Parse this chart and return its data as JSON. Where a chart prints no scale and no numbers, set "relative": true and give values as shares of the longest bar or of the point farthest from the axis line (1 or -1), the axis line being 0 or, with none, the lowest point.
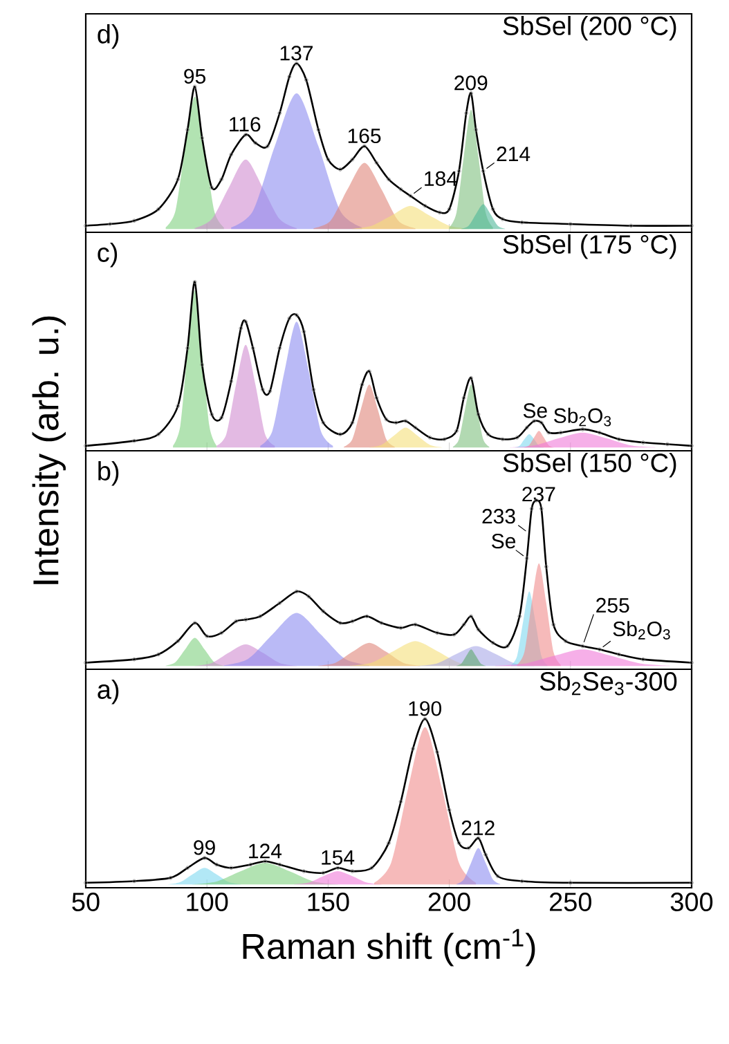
{
  "chart_data": [
    {
      "type": "area",
      "title": "SbSel (200 °C)",
      "relative": true,
      "xlim": [
        50,
        300
      ],
      "xticks": [
        50,
        100,
        150,
        200,
        250,
        300
      ],
      "tick_labels": false,
      "annotations": [
        "d)",
        {
          "text": "95",
          "x": 95,
          "y": 0.86
        },
        {
          "text": "116",
          "x": 116,
          "y": 0.57
        },
        {
          "text": "137",
          "x": 137,
          "y": 1
        },
        {
          "text": "165",
          "x": 165,
          "y": 0.5
        },
        {
          "text": "184",
          "x": 184,
          "y": 0.2
        },
        {
          "text": "209",
          "x": 209,
          "y": 0.82
        },
        {
          "text": "214",
          "x": 214,
          "y": 0.35
        }
      ],
      "series": [
        {
          "color": "#7fd17f",
          "x": [
            83,
            87,
            91,
            95,
            99,
            103,
            107
          ],
          "values": [
            0.01,
            0.11,
            0.49,
            0.8,
            0.49,
            0.11,
            0.01
          ]
        },
        {
          "color": "#d08cd0",
          "x": [
            95,
            102,
            109,
            116,
            123,
            130,
            137
          ],
          "values": [
            0.005,
            0.06,
            0.25,
            0.42,
            0.25,
            0.06,
            0.005
          ]
        },
        {
          "color": "#8c8cf0",
          "x": [
            110,
            119,
            128,
            137,
            146,
            155,
            164
          ],
          "values": [
            0.01,
            0.11,
            0.5,
            0.82,
            0.5,
            0.11,
            0.01
          ]
        },
        {
          "color": "#e0867a",
          "x": [
            144,
            151,
            158,
            165,
            172,
            179,
            186
          ],
          "values": [
            0.005,
            0.05,
            0.24,
            0.4,
            0.24,
            0.05,
            0.005
          ]
        },
        {
          "color": "#f5e07a",
          "x": [
            160,
            168,
            176,
            184,
            192,
            200,
            208
          ],
          "values": [
            0.002,
            0.02,
            0.08,
            0.14,
            0.08,
            0.02,
            0.002
          ]
        },
        {
          "color": "#7fbf7f",
          "x": [
            200,
            203,
            206,
            209,
            212,
            215,
            218
          ],
          "values": [
            0.01,
            0.1,
            0.44,
            0.72,
            0.44,
            0.1,
            0.01
          ]
        },
        {
          "color": "#4fb89a",
          "x": [
            205,
            208,
            211,
            214,
            217,
            220,
            223
          ],
          "values": [
            0.002,
            0.02,
            0.09,
            0.15,
            0.09,
            0.02,
            0.002
          ]
        },
        {
          "type": "scatter",
          "color": "#808080",
          "x": [
            50,
            60,
            70,
            80,
            88,
            92,
            95,
            98,
            102,
            106,
            110,
            116,
            120,
            125,
            130,
            134,
            137,
            141,
            146,
            150,
            155,
            160,
            165,
            170,
            175,
            180,
            184,
            190,
            196,
            200,
            204,
            207,
            209,
            211,
            214,
            218,
            222,
            230,
            250,
            275,
            300
          ],
          "values": [
            0.02,
            0.03,
            0.05,
            0.12,
            0.3,
            0.6,
            0.86,
            0.55,
            0.25,
            0.3,
            0.45,
            0.57,
            0.52,
            0.5,
            0.7,
            0.92,
            1,
            0.9,
            0.6,
            0.42,
            0.36,
            0.42,
            0.5,
            0.4,
            0.3,
            0.24,
            0.2,
            0.14,
            0.1,
            0.12,
            0.35,
            0.7,
            0.82,
            0.6,
            0.35,
            0.12,
            0.06,
            0.04,
            0.03,
            0.02,
            0.02
          ]
        },
        {
          "type": "line",
          "color": "#000000",
          "x": [
            50,
            60,
            70,
            80,
            88,
            92,
            95,
            98,
            102,
            106,
            110,
            116,
            120,
            125,
            130,
            134,
            137,
            141,
            146,
            150,
            155,
            160,
            165,
            170,
            175,
            180,
            184,
            190,
            196,
            200,
            204,
            207,
            209,
            211,
            214,
            218,
            222,
            230,
            250,
            275,
            300
          ],
          "values": [
            0.02,
            0.03,
            0.05,
            0.12,
            0.3,
            0.6,
            0.86,
            0.55,
            0.25,
            0.3,
            0.45,
            0.57,
            0.52,
            0.5,
            0.7,
            0.92,
            1,
            0.9,
            0.6,
            0.42,
            0.36,
            0.42,
            0.5,
            0.4,
            0.3,
            0.24,
            0.2,
            0.14,
            0.1,
            0.12,
            0.35,
            0.7,
            0.82,
            0.6,
            0.35,
            0.12,
            0.06,
            0.04,
            0.03,
            0.02,
            0.02
          ]
        }
      ]
    },
    {
      "type": "area",
      "title": "SbSel (175 °C)",
      "ylabel": "Intensity (arb. u.)",
      "relative": true,
      "xlim": [
        50,
        300
      ],
      "xticks": [
        50,
        100,
        150,
        200,
        250,
        300
      ],
      "tick_labels": false,
      "annotations": [
        "c)",
        {
          "text": "Se",
          "x": 235,
          "y": 0.16
        },
        {
          "text": "Sb$_{2}$O$_{3}$",
          "x": 255,
          "y": 0.11
        }
      ],
      "series": [
        {
          "color": "#7fd17f",
          "x": [
            86,
            89,
            92,
            95,
            98,
            101,
            104
          ],
          "values": [
            0.01,
            0.13,
            0.58,
            0.95,
            0.58,
            0.13,
            0.01
          ]
        },
        {
          "color": "#d08cd0",
          "x": [
            104,
            108,
            112,
            116,
            120,
            124,
            128
          ],
          "values": [
            0.01,
            0.08,
            0.38,
            0.62,
            0.38,
            0.08,
            0.01
          ]
        },
        {
          "color": "#8c8cf0",
          "x": [
            122,
            127,
            132,
            137,
            142,
            147,
            152
          ],
          "values": [
            0.01,
            0.1,
            0.46,
            0.76,
            0.46,
            0.1,
            0.01
          ]
        },
        {
          "color": "#e0867a",
          "x": [
            156.5,
            160,
            163.5,
            167,
            170.5,
            174,
            177.5
          ],
          "values": [
            0.004,
            0.05,
            0.23,
            0.38,
            0.23,
            0.05,
            0.004
          ]
        },
        {
          "color": "#f5e07a",
          "x": [
            167,
            172,
            177,
            182,
            187,
            192,
            197
          ],
          "values": [
            0.001,
            0.016,
            0.07,
            0.12,
            0.07,
            0.016,
            0.001
          ]
        },
        {
          "color": "#7fbf7f",
          "x": [
            201.5,
            204,
            206.5,
            209,
            211.5,
            214,
            216.5
          ],
          "values": [
            0.004,
            0.05,
            0.23,
            0.38,
            0.23,
            0.05,
            0.004
          ]
        },
        {
          "color": "#7fd8f0",
          "x": [
            227,
            229,
            231,
            233,
            235,
            237,
            239
          ],
          "values": [
            0.001,
            0.01,
            0.05,
            0.08,
            0.05,
            0.01,
            0.001
          ]
        },
        {
          "color": "#f08c8c",
          "x": [
            231,
            233,
            235,
            237,
            239,
            241,
            243
          ],
          "values": [
            0.001,
            0.014,
            0.06,
            0.1,
            0.06,
            0.014,
            0.001
          ]
        },
        {
          "color": "#f07ad8",
          "x": [
            225,
            235,
            245,
            255,
            265,
            275,
            285
          ],
          "values": [
            0.001,
            0.012,
            0.055,
            0.09,
            0.055,
            0.012,
            0.001
          ]
        },
        {
          "type": "scatter",
          "color": "#808080",
          "x": [
            50,
            70,
            80,
            88,
            92,
            95,
            98,
            102,
            106,
            110,
            114,
            116,
            119,
            123,
            126,
            130,
            134,
            137,
            140,
            144,
            148,
            155,
            160,
            164,
            167,
            170,
            174,
            178,
            182,
            186,
            192,
            198,
            203,
            206,
            209,
            212,
            216,
            222,
            228,
            232,
            235,
            238,
            241,
            246,
            255,
            262,
            270,
            280,
            290,
            300
          ],
          "values": [
            0.01,
            0.04,
            0.08,
            0.25,
            0.6,
            1,
            0.5,
            0.2,
            0.18,
            0.4,
            0.72,
            0.76,
            0.6,
            0.35,
            0.34,
            0.6,
            0.78,
            0.8,
            0.7,
            0.35,
            0.15,
            0.08,
            0.15,
            0.38,
            0.46,
            0.3,
            0.17,
            0.15,
            0.16,
            0.12,
            0.06,
            0.05,
            0.1,
            0.3,
            0.42,
            0.2,
            0.08,
            0.05,
            0.06,
            0.12,
            0.16,
            0.15,
            0.09,
            0.09,
            0.11,
            0.09,
            0.05,
            0.03,
            0.02,
            0.01
          ]
        },
        {
          "type": "line",
          "color": "#000000",
          "x": [
            50,
            70,
            80,
            88,
            92,
            95,
            98,
            102,
            106,
            110,
            114,
            116,
            119,
            123,
            126,
            130,
            134,
            137,
            140,
            144,
            148,
            155,
            160,
            164,
            167,
            170,
            174,
            178,
            182,
            186,
            192,
            198,
            203,
            206,
            209,
            212,
            216,
            222,
            228,
            232,
            235,
            238,
            241,
            246,
            255,
            262,
            270,
            280,
            290,
            300
          ],
          "values": [
            0.01,
            0.04,
            0.08,
            0.25,
            0.6,
            1,
            0.5,
            0.2,
            0.18,
            0.4,
            0.72,
            0.76,
            0.6,
            0.35,
            0.34,
            0.6,
            0.78,
            0.8,
            0.7,
            0.35,
            0.15,
            0.08,
            0.15,
            0.38,
            0.46,
            0.3,
            0.17,
            0.15,
            0.16,
            0.12,
            0.06,
            0.05,
            0.1,
            0.3,
            0.42,
            0.2,
            0.08,
            0.05,
            0.06,
            0.12,
            0.16,
            0.15,
            0.09,
            0.09,
            0.11,
            0.09,
            0.05,
            0.03,
            0.02,
            0.01
          ]
        }
      ]
    },
    {
      "type": "area",
      "title": "SbSel (150 °C)",
      "relative": true,
      "xlim": [
        50,
        300
      ],
      "xticks": [
        50,
        100,
        150,
        200,
        250,
        300
      ],
      "tick_labels": false,
      "annotations": [
        "b)",
        {
          "text": "233",
          "x": 233,
          "y": 0.8
        },
        {
          "text": "Se",
          "x": 232,
          "y": 0.65
        },
        {
          "text": "237",
          "x": 237,
          "y": 0.975
        },
        {
          "text": "Sb$_{2}$O$_{3}$",
          "x": 262,
          "y": 0.1
        },
        {
          "text": "255",
          "x": 255,
          "y": 0.12
        }
      ],
      "series": [
        {
          "color": "#7fd17f",
          "x": [
            83,
            87,
            91,
            95,
            99,
            103,
            107
          ],
          "values": [
            0.002,
            0.023,
            0.1,
            0.17,
            0.1,
            0.023,
            0.002
          ]
        },
        {
          "color": "#d08cd0",
          "x": [
            95,
            102,
            109,
            116,
            123,
            130,
            137
          ],
          "values": [
            0.001,
            0.018,
            0.08,
            0.13,
            0.08,
            0.018,
            0.001
          ]
        },
        {
          "color": "#8c8cf0",
          "x": [
            107,
            117,
            127,
            137,
            147,
            157,
            167
          ],
          "values": [
            0.004,
            0.043,
            0.19,
            0.32,
            0.19,
            0.043,
            0.004
          ]
        },
        {
          "color": "#e0867a",
          "x": [
            146,
            153,
            160,
            167,
            174,
            181,
            188
          ],
          "values": [
            0.002,
            0.019,
            0.085,
            0.14,
            0.085,
            0.019,
            0.002
          ]
        },
        {
          "color": "#f5e07a",
          "x": [
            159,
            168,
            177,
            186,
            195,
            204,
            213
          ],
          "values": [
            0.002,
            0.02,
            0.09,
            0.15,
            0.09,
            0.02,
            0.002
          ]
        },
        {
          "color": "#a8a8e8",
          "x": [
            187,
            195,
            203,
            211,
            219,
            227,
            235
          ],
          "values": [
            0.001,
            0.016,
            0.073,
            0.12,
            0.073,
            0.016,
            0.001
          ]
        },
        {
          "color": "#5fa86f",
          "x": [
            203,
            205,
            207,
            209,
            211,
            213,
            215
          ],
          "values": [
            0.001,
            0.014,
            0.06,
            0.1,
            0.06,
            0.014,
            0.001
          ]
        },
        {
          "color": "#7fd8f0",
          "x": [
            225.5,
            228,
            230.5,
            233,
            235.5,
            238,
            240.5
          ],
          "values": [
            0.005,
            0.06,
            0.27,
            0.45,
            0.27,
            0.06,
            0.005
          ]
        },
        {
          "color": "#f08c8c",
          "x": [
            228,
            231,
            234,
            237,
            240,
            243,
            246
          ],
          "values": [
            0.007,
            0.084,
            0.38,
            0.62,
            0.38,
            0.084,
            0.007
          ]
        },
        {
          "color": "#f07ad8",
          "x": [
            219,
            231,
            243,
            255,
            267,
            279,
            291
          ],
          "values": [
            0.001,
            0.014,
            0.06,
            0.1,
            0.06,
            0.014,
            0.001
          ]
        },
        {
          "type": "scatter",
          "color": "#808080",
          "x": [
            50,
            70,
            80,
            88,
            95,
            100,
            106,
            112,
            116,
            122,
            130,
            137,
            142,
            148,
            155,
            160,
            166,
            172,
            180,
            186,
            195,
            202,
            206,
            209,
            212,
            218,
            224,
            229,
            232,
            234,
            236,
            238,
            240,
            243,
            248,
            255,
            262,
            270,
            280,
            300
          ],
          "values": [
            0.02,
            0.04,
            0.07,
            0.15,
            0.26,
            0.18,
            0.2,
            0.27,
            0.28,
            0.3,
            0.38,
            0.45,
            0.42,
            0.33,
            0.26,
            0.27,
            0.3,
            0.26,
            0.23,
            0.25,
            0.2,
            0.19,
            0.25,
            0.3,
            0.22,
            0.14,
            0.12,
            0.3,
            0.65,
            0.95,
            1,
            0.95,
            0.6,
            0.25,
            0.15,
            0.12,
            0.1,
            0.07,
            0.04,
            0.02
          ]
        },
        {
          "type": "line",
          "color": "#000000",
          "x": [
            50,
            70,
            80,
            88,
            95,
            100,
            106,
            112,
            116,
            122,
            130,
            137,
            142,
            148,
            155,
            160,
            166,
            172,
            180,
            186,
            195,
            202,
            206,
            209,
            212,
            218,
            224,
            229,
            232,
            234,
            236,
            238,
            240,
            243,
            248,
            255,
            262,
            270,
            280,
            300
          ],
          "values": [
            0.02,
            0.04,
            0.07,
            0.15,
            0.26,
            0.18,
            0.2,
            0.27,
            0.28,
            0.3,
            0.38,
            0.45,
            0.42,
            0.33,
            0.26,
            0.27,
            0.3,
            0.26,
            0.23,
            0.25,
            0.2,
            0.19,
            0.25,
            0.3,
            0.22,
            0.14,
            0.12,
            0.3,
            0.65,
            0.95,
            1,
            0.95,
            0.6,
            0.25,
            0.15,
            0.12,
            0.1,
            0.07,
            0.04,
            0.02
          ]
        }
      ]
    },
    {
      "type": "area",
      "title": "Sb$_{2}$Se$_{3}$-300",
      "xlabel": "Raman shift (cm$^{-1}$)",
      "relative": true,
      "xlim": [
        50,
        300
      ],
      "xticks": [
        50,
        100,
        150,
        200,
        250,
        300
      ],
      "tick_labels": "x",
      "annotations": [
        "a)",
        {
          "text": "99",
          "x": 99,
          "y": 0.16
        },
        {
          "text": "124",
          "x": 124,
          "y": 0.14
        },
        {
          "text": "154",
          "x": 154,
          "y": 0.1
        },
        {
          "text": "190",
          "x": 190,
          "y": 1
        },
        {
          "text": "212",
          "x": 212,
          "y": 0.28
        }
      ],
      "series": [
        {
          "color": "#7fd8f0",
          "x": [
            84,
            89,
            94,
            99,
            104,
            109,
            114
          ],
          "values": [
            0.001,
            0.014,
            0.06,
            0.1,
            0.06,
            0.014,
            0.001
          ]
        },
        {
          "color": "#7fd17f",
          "x": [
            94,
            104,
            114,
            124,
            134,
            144,
            154
          ],
          "values": [
            0.001,
            0.018,
            0.08,
            0.13,
            0.08,
            0.018,
            0.001
          ]
        },
        {
          "color": "#f07ad8",
          "x": [
            136,
            142,
            148,
            154,
            160,
            166,
            172
          ],
          "values": [
            0.001,
            0.011,
            0.05,
            0.08,
            0.05,
            0.011,
            0.001
          ]
        },
        {
          "color": "#f08c8c",
          "x": [
            169,
            176,
            183,
            190,
            197,
            204,
            211
          ],
          "values": [
            0.01,
            0.13,
            0.58,
            0.95,
            0.58,
            0.13,
            0.01
          ]
        },
        {
          "color": "#8c8cf0",
          "x": [
            203,
            206,
            209,
            212,
            215,
            218,
            221
          ],
          "values": [
            0.002,
            0.03,
            0.13,
            0.22,
            0.13,
            0.03,
            0.002
          ]
        },
        {
          "type": "scatter",
          "color": "#808080",
          "x": [
            50,
            70,
            85,
            92,
            99,
            104,
            110,
            118,
            124,
            130,
            140,
            148,
            154,
            160,
            168,
            175,
            180,
            185,
            190,
            195,
            200,
            204,
            208,
            212,
            215,
            220,
            230,
            250,
            300
          ],
          "values": [
            0.01,
            0.02,
            0.04,
            0.1,
            0.16,
            0.12,
            0.1,
            0.12,
            0.14,
            0.12,
            0.08,
            0.07,
            0.1,
            0.08,
            0.1,
            0.25,
            0.5,
            0.82,
            1,
            0.8,
            0.45,
            0.25,
            0.22,
            0.28,
            0.18,
            0.05,
            0.02,
            0.01,
            0.01
          ]
        },
        {
          "type": "line",
          "color": "#000000",
          "x": [
            50,
            70,
            85,
            92,
            99,
            104,
            110,
            118,
            124,
            130,
            140,
            148,
            154,
            160,
            168,
            175,
            180,
            185,
            190,
            195,
            200,
            204,
            208,
            212,
            215,
            220,
            230,
            250,
            300
          ],
          "values": [
            0.01,
            0.02,
            0.04,
            0.1,
            0.16,
            0.12,
            0.1,
            0.12,
            0.14,
            0.12,
            0.08,
            0.07,
            0.1,
            0.08,
            0.1,
            0.25,
            0.5,
            0.82,
            1,
            0.8,
            0.45,
            0.25,
            0.22,
            0.28,
            0.18,
            0.05,
            0.02,
            0.01,
            0.01
          ]
        }
      ]
    }
  ]
}
